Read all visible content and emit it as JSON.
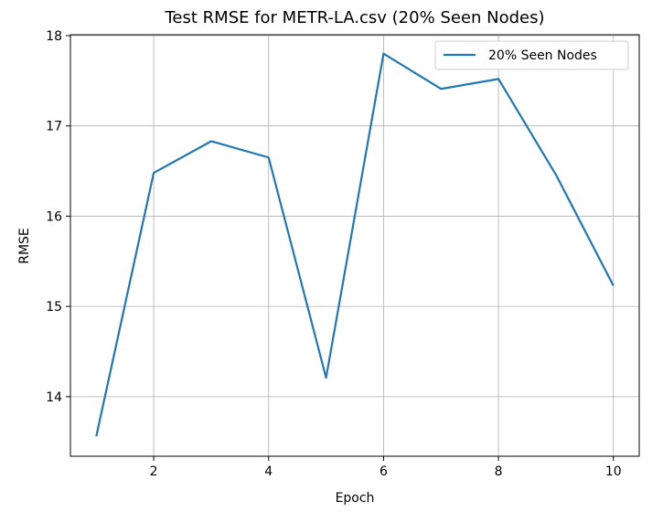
{
  "chart_data": {
    "type": "line",
    "title": "Test RMSE for METR-LA.csv (20% Seen Nodes)",
    "xlabel": "Epoch",
    "ylabel": "RMSE",
    "x": [
      1,
      2,
      3,
      4,
      5,
      6,
      7,
      8,
      9,
      10
    ],
    "series": [
      {
        "name": "20% Seen Nodes",
        "values": [
          13.56,
          16.48,
          16.83,
          16.65,
          14.21,
          17.8,
          17.41,
          17.52,
          16.46,
          15.23
        ],
        "color": "#1f77b4"
      }
    ],
    "xticks": [
      2,
      4,
      6,
      8,
      10
    ],
    "yticks": [
      14,
      15,
      16,
      17,
      18
    ],
    "xlim": [
      0.55,
      10.45
    ],
    "ylim": [
      13.34,
      18.01
    ],
    "grid": true,
    "legend_position": "top-right"
  }
}
